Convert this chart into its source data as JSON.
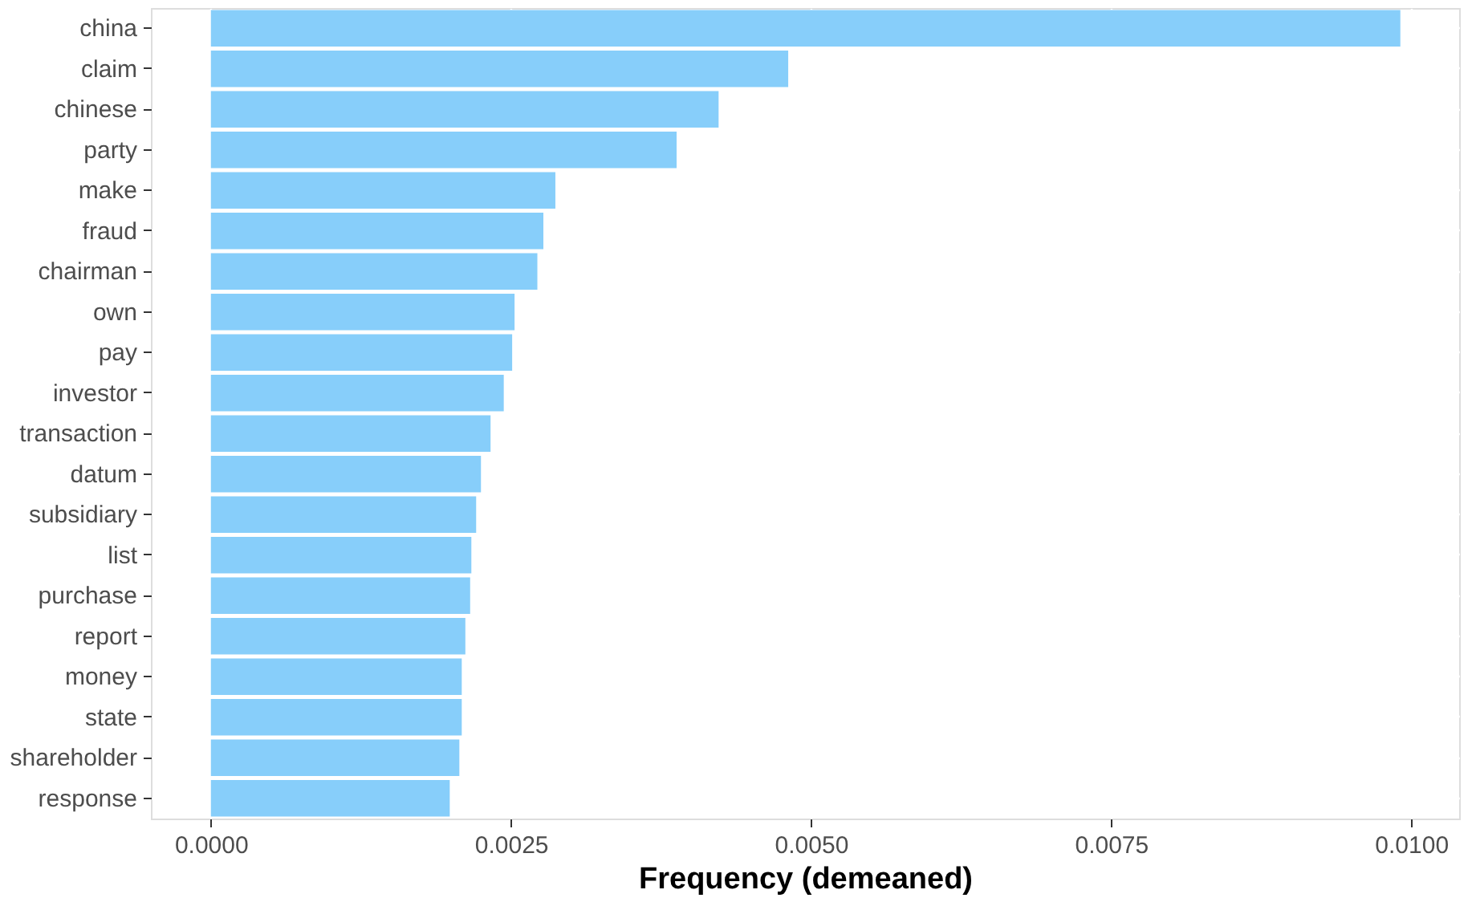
{
  "chart_data": {
    "type": "bar",
    "orientation": "horizontal",
    "xlabel": "Frequency (demeaned)",
    "categories": [
      "china",
      "claim",
      "chinese",
      "party",
      "make",
      "fraud",
      "chairman",
      "own",
      "pay",
      "investor",
      "transaction",
      "datum",
      "subsidiary",
      "list",
      "purchase",
      "report",
      "money",
      "state",
      "shareholder",
      "response"
    ],
    "values": [
      0.00991,
      0.00481,
      0.00423,
      0.00388,
      0.00287,
      0.00277,
      0.00272,
      0.00253,
      0.00251,
      0.00244,
      0.00233,
      0.00225,
      0.00221,
      0.00217,
      0.00216,
      0.00212,
      0.00209,
      0.00209,
      0.00207,
      0.00199
    ],
    "color": "#87cefa",
    "xlim": [
      -0.0005,
      0.0104
    ],
    "xticks": [
      {
        "value": 0,
        "label": "0.0000"
      },
      {
        "value": 0.0025,
        "label": "0.0025"
      },
      {
        "value": 0.005,
        "label": "0.0050"
      },
      {
        "value": 0.0075,
        "label": "0.0075"
      },
      {
        "value": 0.01,
        "label": "0.0100"
      }
    ],
    "grid": true
  }
}
